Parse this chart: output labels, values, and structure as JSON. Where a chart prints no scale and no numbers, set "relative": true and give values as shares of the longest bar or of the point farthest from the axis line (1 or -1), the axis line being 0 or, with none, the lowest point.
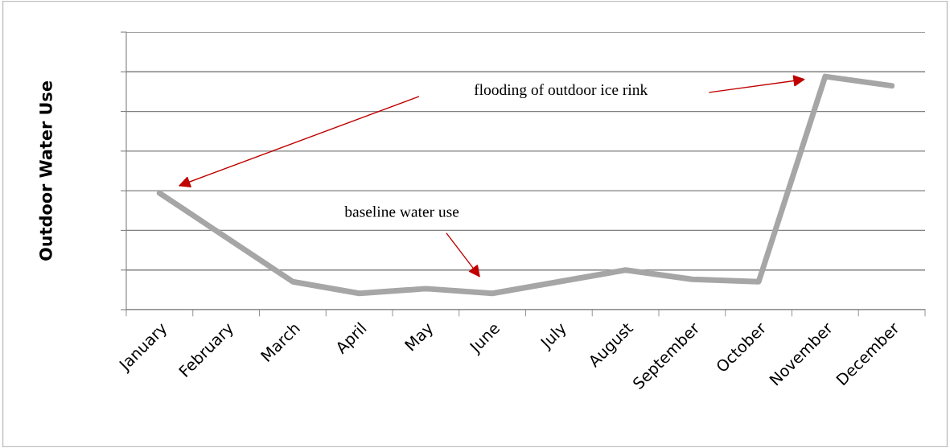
{
  "chart_data": {
    "type": "line",
    "relative": true,
    "ylabel": "Outdoor Water Use",
    "categories": [
      "January",
      "February",
      "March",
      "April",
      "May",
      "June",
      "July",
      "August",
      "September",
      "October",
      "November",
      "December"
    ],
    "series": [
      {
        "color": "#a6a6a6",
        "values": [
          0.5,
          0.31,
          0.12,
          0.07,
          0.09,
          0.07,
          0.12,
          0.17,
          0.13,
          0.12,
          1,
          0.96
        ]
      }
    ],
    "annotations": [
      "flooding of outdoor ice rink",
      "baseline water use"
    ],
    "grid": "y",
    "legend": false,
    "marker": "none",
    "line_style": "solid"
  }
}
